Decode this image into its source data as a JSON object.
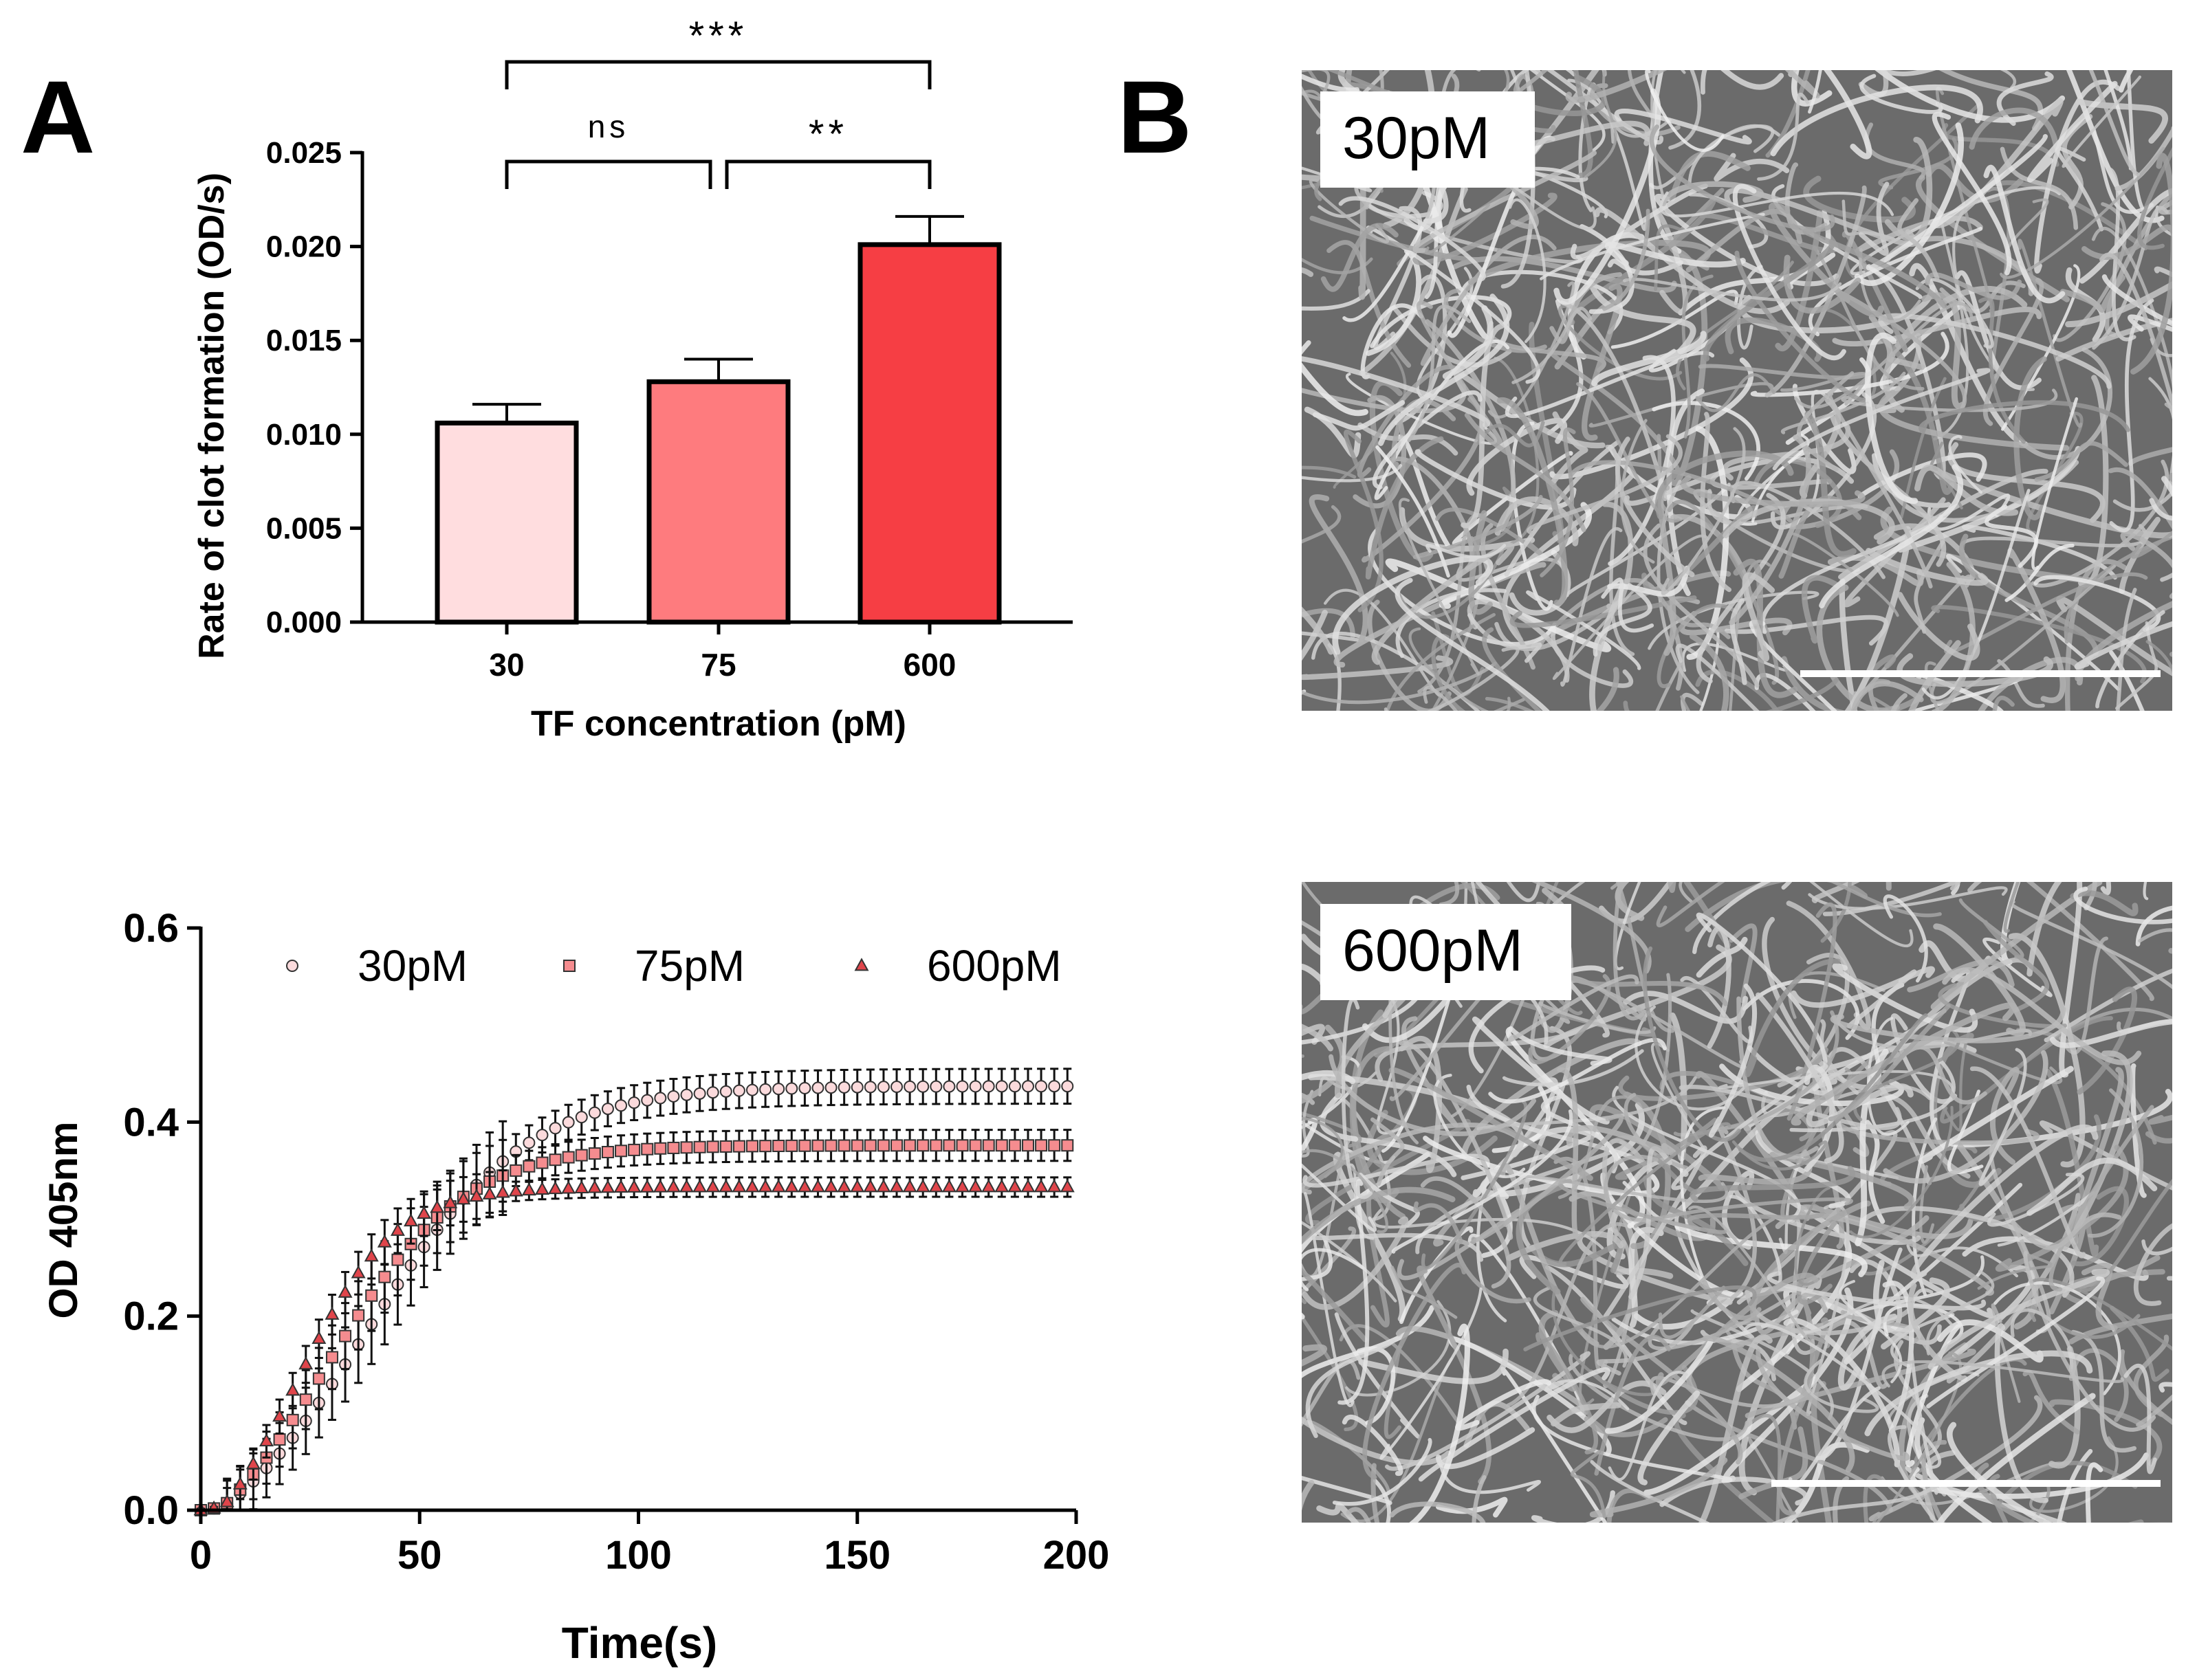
{
  "panel_labels": {
    "a": "A",
    "b": "B"
  },
  "colors": {
    "bar_30": "#FFDDDF",
    "bar_75": "#FE7B7E",
    "bar_600": "#F63E44",
    "marker_30": "#FBDADC",
    "marker_75": "#F58C8F",
    "marker_600": "#E0454B",
    "sem_background": "#6B6B6B",
    "sem_fiber": "#C8C8C8",
    "scale_bar": "#FFFFFF"
  },
  "chart_data": [
    {
      "type": "bar",
      "title": "",
      "xlabel": "TF concentration (pM)",
      "ylabel": "Rate of clot formation (OD/s)",
      "categories": [
        "30",
        "75",
        "600"
      ],
      "values": [
        0.0106,
        0.0128,
        0.0201
      ],
      "errors": [
        0.001,
        0.0012,
        0.0015
      ],
      "ylim": [
        0,
        0.025
      ],
      "yticks": [
        0,
        0.005,
        0.01,
        0.015,
        0.02,
        0.025
      ],
      "ytick_labels": [
        "0.000",
        "0.005",
        "0.010",
        "0.015",
        "0.020",
        "0.025"
      ],
      "significance": [
        {
          "from": "30",
          "to": "75",
          "label": "ns"
        },
        {
          "from": "75",
          "to": "600",
          "label": "**"
        },
        {
          "from": "30",
          "to": "600",
          "label": "***"
        }
      ]
    },
    {
      "type": "scatter",
      "title": "",
      "xlabel": "Time(s)",
      "ylabel": "OD 405nm",
      "xlim": [
        0,
        200
      ],
      "ylim": [
        0,
        0.6
      ],
      "xticks": [
        0,
        50,
        100,
        150,
        200
      ],
      "xtick_labels": [
        "0",
        "50",
        "100",
        "150",
        "200"
      ],
      "yticks": [
        0,
        0.2,
        0.4,
        0.6
      ],
      "ytick_labels": [
        "0.0",
        "0.2",
        "0.4",
        "0.6"
      ],
      "legend_position": "top",
      "time_step": 3,
      "series": [
        {
          "name": "30pM",
          "marker": "circle",
          "model": {
            "onset": 5,
            "plateau": 0.437,
            "rise": 0.055,
            "half": 38,
            "lag_level": 0.003
          },
          "error": 0.018
        },
        {
          "name": "75pM",
          "marker": "square",
          "model": {
            "onset": 5,
            "plateau": 0.376,
            "rise": 0.065,
            "half": 29,
            "lag_level": 0.003
          },
          "error": 0.016
        },
        {
          "name": "600pM",
          "marker": "triangle",
          "model": {
            "onset": 5,
            "plateau": 0.333,
            "rise": 0.09,
            "half": 22,
            "lag_level": 0.003
          },
          "error": 0.01
        }
      ]
    }
  ],
  "micrographs": [
    {
      "label": "30pM"
    },
    {
      "label": "600pM"
    }
  ]
}
